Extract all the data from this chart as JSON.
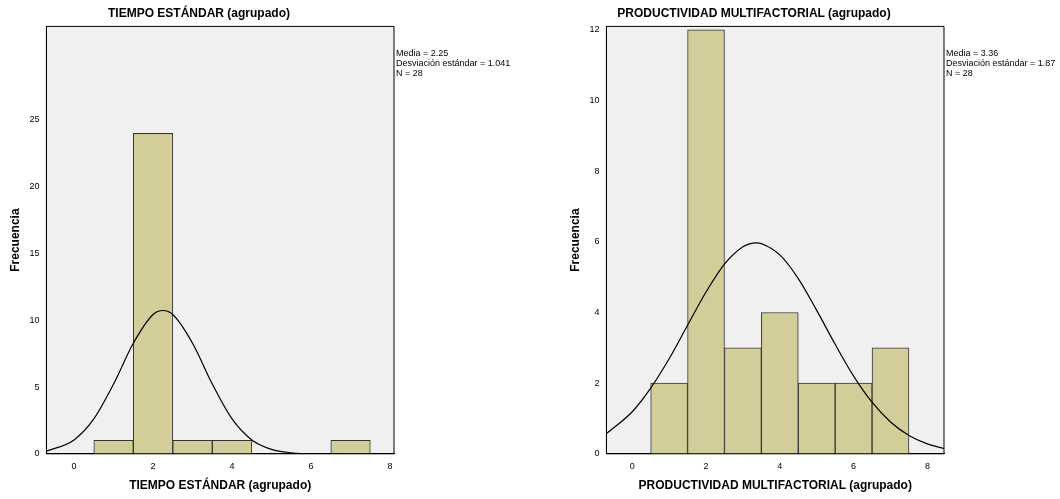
{
  "chart_data": [
    {
      "type": "histogram",
      "title": "TIEMPO ESTÁNDAR (agrupado)",
      "xlabel": "TIEMPO ESTÁNDAR (agrupado)",
      "ylabel": "Frecuencia",
      "bins": [
        0.5,
        1.5,
        2.5,
        3.5,
        4.5,
        5.5,
        6.5,
        7.5
      ],
      "values": [
        1,
        24,
        1,
        1,
        0,
        0,
        1
      ],
      "color": "#d3ce99",
      "xlim": [
        -0.7,
        8.1
      ],
      "ylim": [
        0,
        32
      ],
      "xticks": [
        0,
        2,
        4,
        6,
        8
      ],
      "yticks": [
        0,
        5,
        10,
        15,
        20,
        25
      ],
      "grid": false,
      "annotations": [
        "Media = 2.25",
        "Desviación estándar = 1.041",
        "N = 28"
      ],
      "series": [
        {
          "type": "line",
          "color": "#000000",
          "x": [
            -0.7,
            0,
            0.5,
            1,
            1.5,
            2,
            2.25,
            2.5,
            3,
            3.5,
            4,
            4.5,
            5,
            5.5,
            6,
            8.1
          ],
          "values": [
            0.2,
            1.04,
            2.61,
            5.22,
            8.28,
            10.43,
            10.73,
            10.43,
            8.28,
            5.22,
            2.61,
            1.04,
            0.33,
            0.08,
            0.01,
            0
          ]
        }
      ]
    },
    {
      "type": "histogram",
      "title": "PRODUCTIVIDAD MULTIFACTORIAL (agrupado)",
      "xlabel": "PRODUCTIVIDAD MULTIFACTORIAL (agrupado)",
      "ylabel": "Frecuencia",
      "bins": [
        0.5,
        1.5,
        2.5,
        3.5,
        4.5,
        5.5,
        6.5,
        7.5
      ],
      "values": [
        2,
        12,
        3,
        4,
        2,
        2,
        3
      ],
      "color": "#d3ce99",
      "xlim": [
        -0.7,
        8.45
      ],
      "ylim": [
        0,
        12.1
      ],
      "xticks": [
        0,
        2,
        4,
        6,
        8
      ],
      "yticks": [
        0,
        2,
        4,
        6,
        8,
        10,
        12
      ],
      "grid": false,
      "annotations": [
        "Media = 3.36",
        "Desviación estándar = 1.87",
        "N = 28"
      ],
      "series": [
        {
          "type": "line",
          "color": "#000000",
          "x": [
            -0.7,
            0,
            0.5,
            1,
            1.5,
            2,
            2.5,
            3,
            3.36,
            3.5,
            4,
            4.5,
            5,
            5.5,
            6,
            6.5,
            7,
            7.5,
            8,
            8.45
          ],
          "values": [
            0.57,
            1.19,
            1.86,
            2.69,
            3.64,
            4.58,
            5.37,
            5.86,
            5.97,
            5.95,
            5.63,
            4.96,
            4.06,
            3.1,
            2.2,
            1.46,
            0.9,
            0.52,
            0.28,
            0.15
          ]
        }
      ]
    }
  ]
}
